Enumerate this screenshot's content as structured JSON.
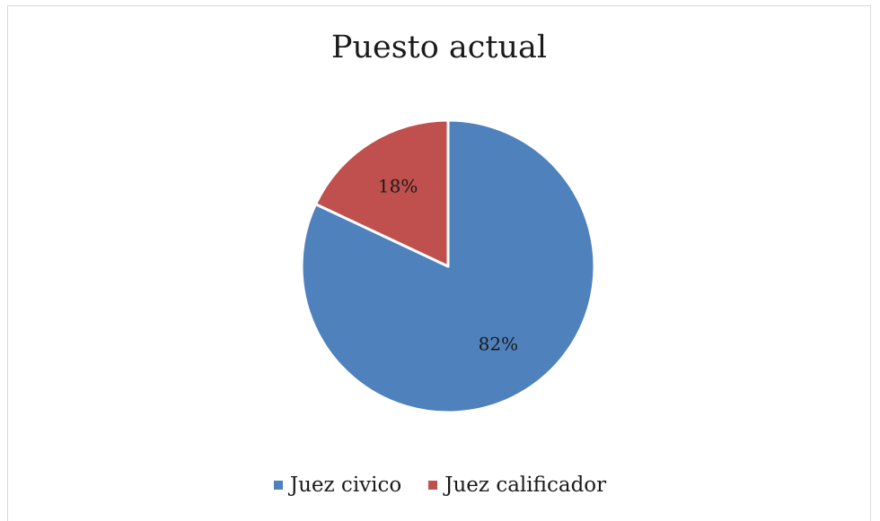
{
  "chart_data": {
    "type": "pie",
    "title": "Puesto actual",
    "categories": [
      "Juez civico",
      "Juez calificador"
    ],
    "values": [
      82,
      18
    ],
    "data_labels": [
      "82%",
      "18%"
    ],
    "colors": [
      "#4F81BD",
      "#C0504D"
    ],
    "legend_position": "bottom"
  }
}
